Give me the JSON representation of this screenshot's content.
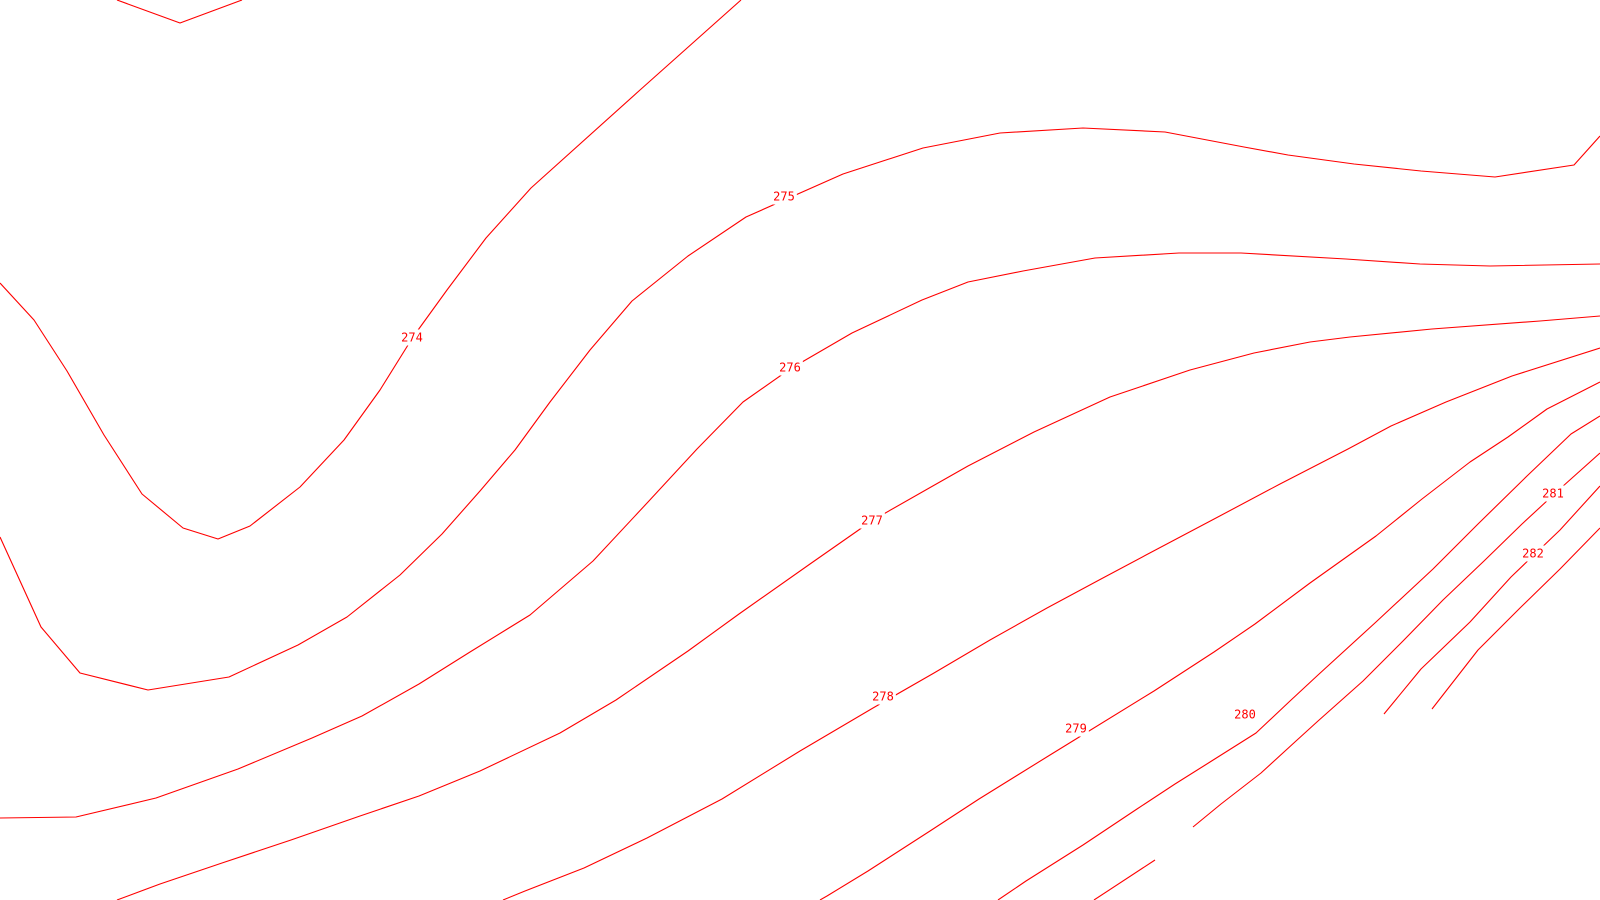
{
  "map": {
    "line_color": "#ff0000",
    "background": "#ffffff",
    "contour_labels": [
      "274",
      "275",
      "276",
      "277",
      "278",
      "279",
      "280",
      "281",
      "282"
    ]
  }
}
